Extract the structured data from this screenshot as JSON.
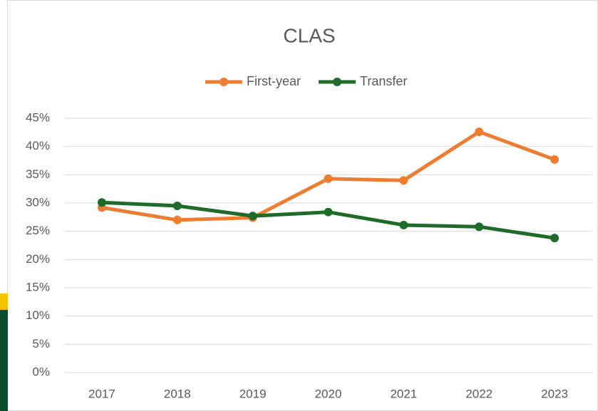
{
  "chart_data": {
    "type": "line",
    "title": "CLAS",
    "categories": [
      "2017",
      "2018",
      "2019",
      "2020",
      "2021",
      "2022",
      "2023"
    ],
    "series": [
      {
        "name": "First-year",
        "color": "#ed7d31",
        "values": [
          29.2,
          27.0,
          27.4,
          34.3,
          34.0,
          42.6,
          37.7
        ]
      },
      {
        "name": "Transfer",
        "color": "#1e6b2a",
        "values": [
          30.1,
          29.5,
          27.7,
          28.4,
          26.1,
          25.8,
          23.8
        ]
      }
    ],
    "ylim": [
      0,
      45
    ],
    "yticks": [
      {
        "value": 0,
        "label": "0%"
      },
      {
        "value": 5,
        "label": "5%"
      },
      {
        "value": 10,
        "label": "10%"
      },
      {
        "value": 15,
        "label": "15%"
      },
      {
        "value": 20,
        "label": "20%"
      },
      {
        "value": 25,
        "label": "25%"
      },
      {
        "value": 30,
        "label": "30%"
      },
      {
        "value": 35,
        "label": "35%"
      },
      {
        "value": 40,
        "label": "40%"
      },
      {
        "value": 45,
        "label": "45%"
      }
    ],
    "grid": true,
    "legend": "top"
  }
}
